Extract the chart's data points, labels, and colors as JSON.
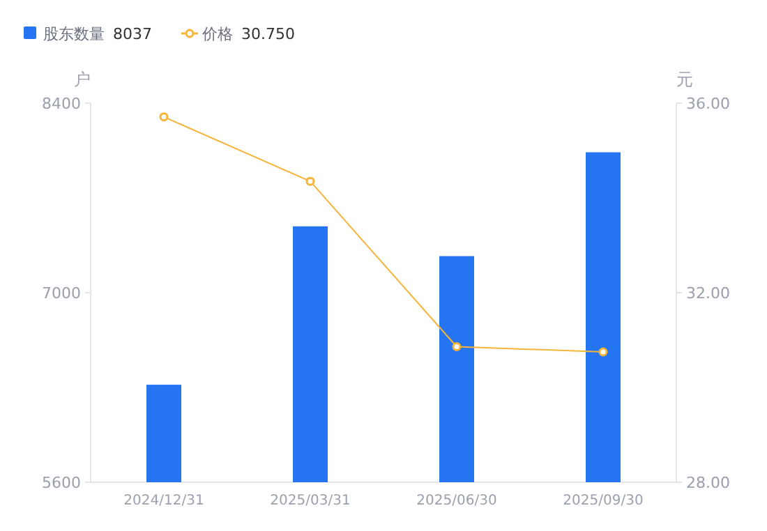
{
  "chart_data": {
    "type": "bar",
    "categories": [
      "2024/12/31",
      "2025/03/31",
      "2025/06/30",
      "2025/09/30"
    ],
    "series": [
      {
        "name": "股东数量",
        "color": "#2574f2",
        "values": [
          6320,
          7490,
          7270,
          8037
        ]
      },
      {
        "name": "价格",
        "type": "line",
        "axis": "y2",
        "color": "#f5b43a",
        "marker": "circle",
        "values": [
          35.71,
          34.35,
          30.86,
          30.75
        ]
      }
    ],
    "ylabel": "户",
    "y2label": "元",
    "ylim": [
      5600,
      8400
    ],
    "yticks": [
      5600,
      7000,
      8400
    ],
    "y2lim": [
      28,
      36
    ],
    "y2ticks": [
      {
        "value": 28,
        "label": "28.00"
      },
      {
        "value": 32,
        "label": "32.00"
      },
      {
        "value": 36,
        "label": "36.00"
      }
    ],
    "legend": "top left",
    "annotations": [
      "8037",
      "30.750"
    ]
  }
}
